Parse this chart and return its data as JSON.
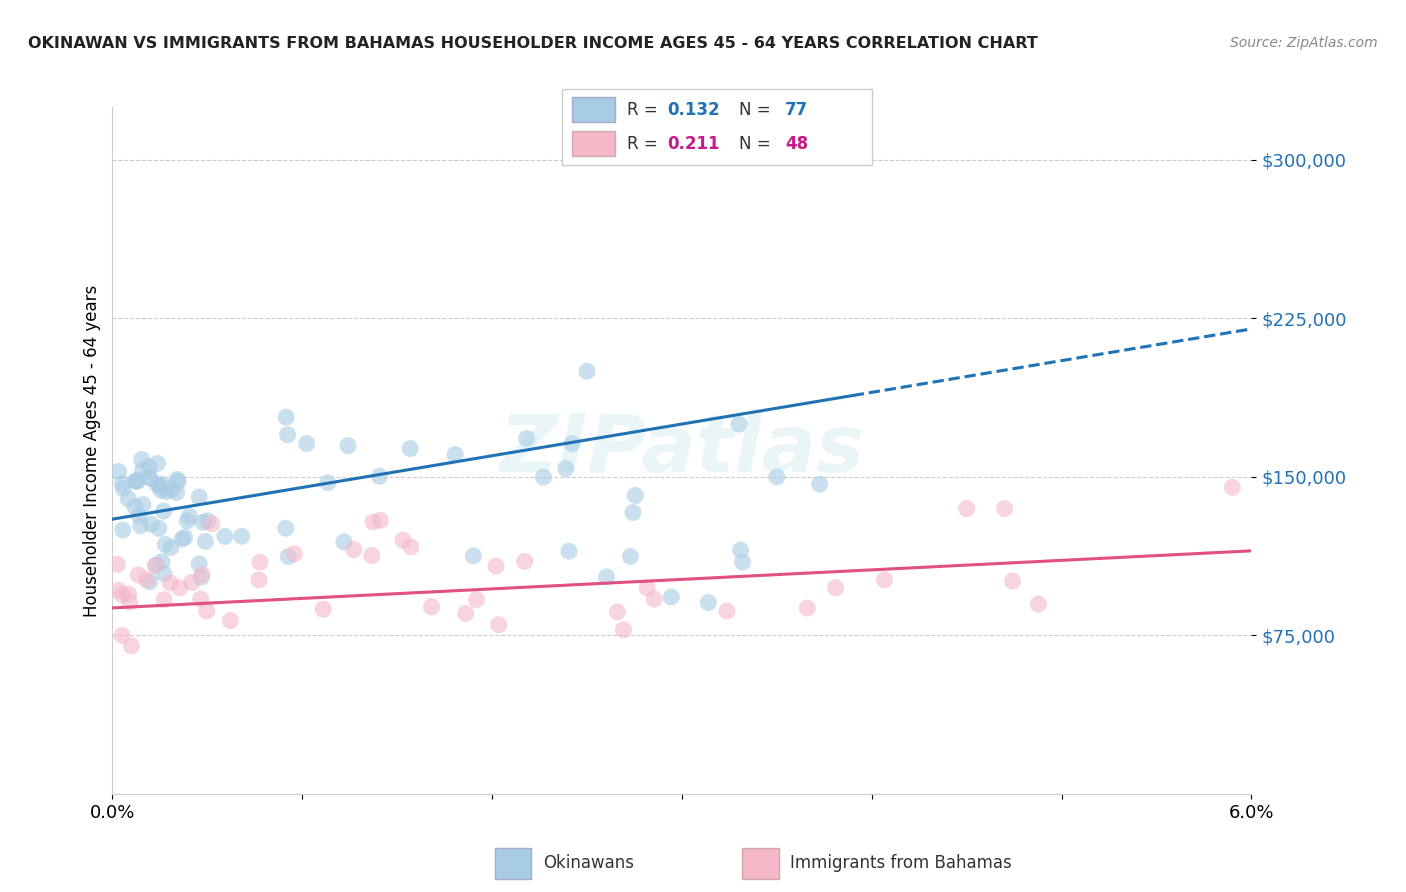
{
  "title": "OKINAWAN VS IMMIGRANTS FROM BAHAMAS HOUSEHOLDER INCOME AGES 45 - 64 YEARS CORRELATION CHART",
  "source": "Source: ZipAtlas.com",
  "ylabel": "Householder Income Ages 45 - 64 years",
  "xlim": [
    0.0,
    6.0
  ],
  "ylim": [
    0,
    325000
  ],
  "yticks": [
    75000,
    150000,
    225000,
    300000
  ],
  "ytick_labels": [
    "$75,000",
    "$150,000",
    "$225,000",
    "$300,000"
  ],
  "blue_color": "#a8cce4",
  "blue_line_color": "#2171b5",
  "pink_color": "#f4b8c8",
  "pink_line_color": "#e05080",
  "legend_blue_label": "Okinawans",
  "legend_pink_label": "Immigrants from Bahamas",
  "R_blue": 0.132,
  "N_blue": 77,
  "R_pink": 0.211,
  "N_pink": 48,
  "blue_R_color": "#2171b5",
  "pink_R_color": "#c51b8a",
  "watermark_text": "ZIPatlas",
  "blue_line_solid_end": 3.9,
  "blue_line_dashed_start": 3.9,
  "blue_line_x0": 0.0,
  "blue_line_y0": 130000,
  "blue_line_x1": 6.0,
  "blue_line_y1": 220000,
  "pink_line_x0": 0.0,
  "pink_line_y0": 88000,
  "pink_line_x1": 6.0,
  "pink_line_y1": 115000
}
